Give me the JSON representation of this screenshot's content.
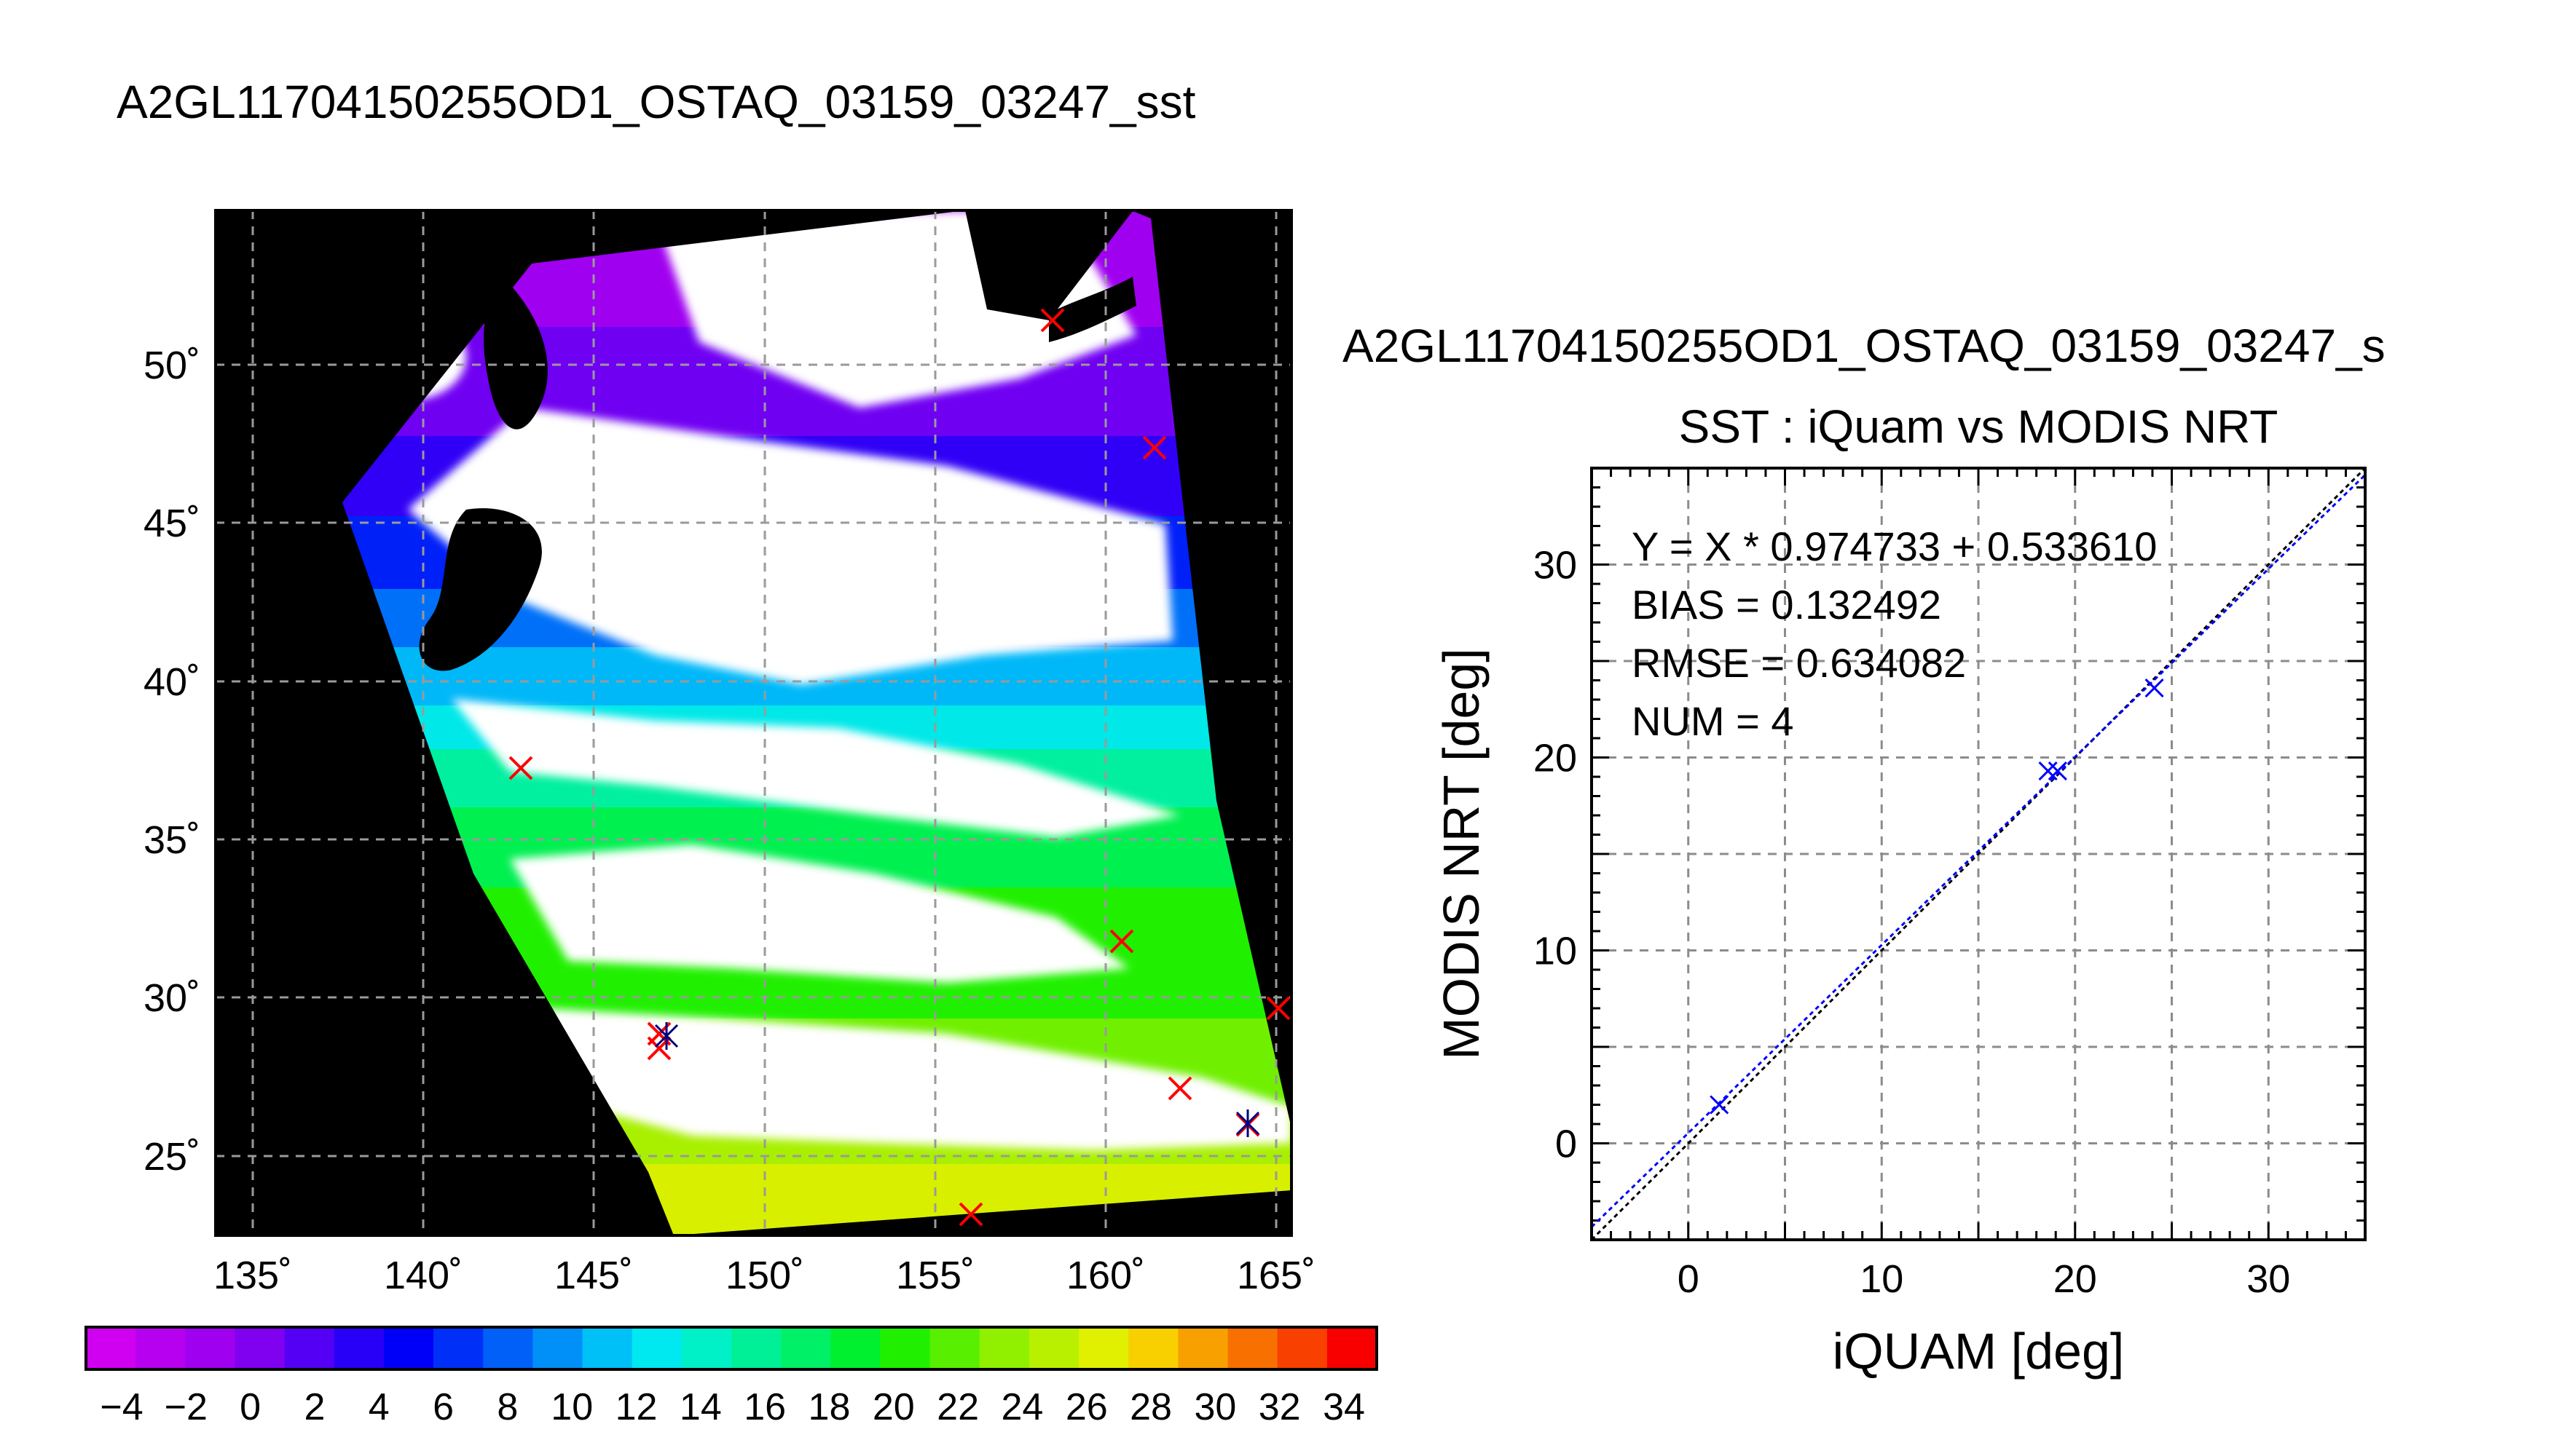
{
  "figure": {
    "title": "A2GL11704150255OD1_OSTAQ_03159_03247_sst",
    "map_lat_labels": [
      "50˚",
      "45˚",
      "40˚",
      "35˚",
      "30˚",
      "25˚"
    ],
    "map_lon_labels": [
      "135˚",
      "140˚",
      "145˚",
      "150˚",
      "155˚",
      "160˚",
      "165˚"
    ],
    "colorbar": {
      "tick_labels": [
        "−4",
        "−2",
        "0",
        "2",
        "4",
        "6",
        "8",
        "10",
        "12",
        "14",
        "16",
        "18",
        "20",
        "22",
        "24",
        "26",
        "28",
        "30",
        "32",
        "34"
      ],
      "colors": [
        "#d000f0",
        "#b800f0",
        "#a000f0",
        "#8000f0",
        "#5400f4",
        "#2800f8",
        "#0000f8",
        "#0030f8",
        "#0060f8",
        "#0090f8",
        "#00c0f8",
        "#00e8f0",
        "#00f0c8",
        "#00f098",
        "#00f068",
        "#00f030",
        "#20f000",
        "#58f000",
        "#90f000",
        "#b8f000",
        "#e0f000",
        "#f8d000",
        "#f8a000",
        "#f87000",
        "#f84000",
        "#f80000"
      ]
    },
    "overlay_icons": {
      "match_marker": "red-x-marker",
      "station_marker": "asterisk-marker"
    }
  },
  "chart_data": [
    {
      "type": "scatter",
      "title": "A2GL11704150255OD1_OSTAQ_03159_03247_s",
      "subtitle": "SST : iQuam vs MODIS NRT",
      "xlabel": "iQUAM [deg]",
      "ylabel": "MODIS NRT [deg]",
      "xlim": [
        -5,
        35
      ],
      "ylim": [
        -5,
        35
      ],
      "xticks": [
        "0",
        "10",
        "20",
        "30"
      ],
      "yticks": [
        "0",
        "10",
        "20",
        "30"
      ],
      "grid": true,
      "annotations": [
        "Y = X * 0.974733 + 0.533610",
        "BIAS = 0.132492",
        "RMSE = 0.634082",
        "NUM = 4"
      ],
      "fit": {
        "slope": 0.974733,
        "intercept": 0.53361
      },
      "series": [
        {
          "points": [
            [
              1.6,
              2.0
            ],
            [
              18.6,
              19.3
            ],
            [
              19.1,
              19.3
            ],
            [
              24.1,
              23.6
            ]
          ],
          "color": "#0000ff"
        }
      ]
    }
  ]
}
